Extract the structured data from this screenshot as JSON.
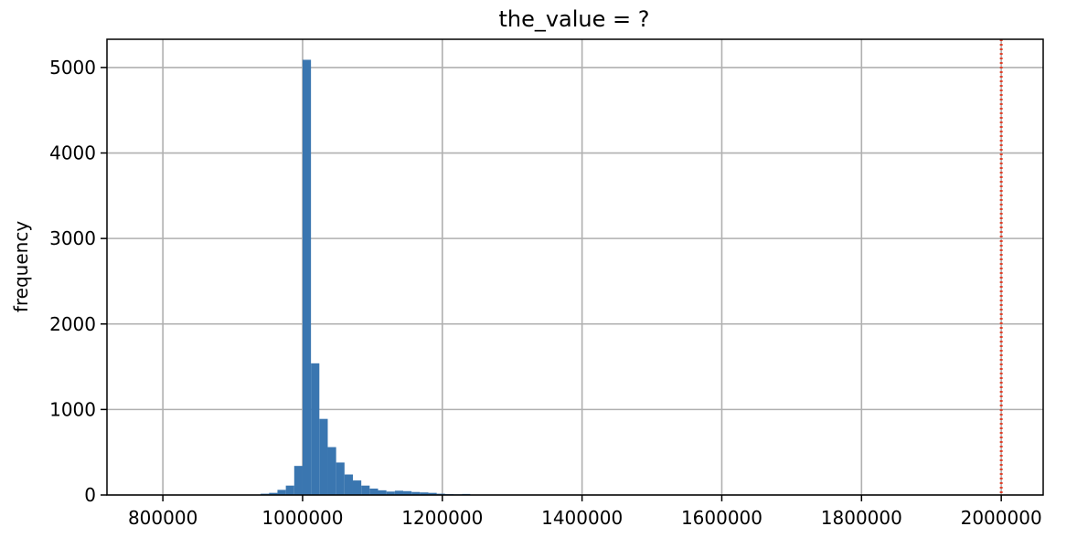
{
  "chart_data": {
    "type": "bar",
    "title": "the_value = ?",
    "xlabel": "",
    "ylabel": "frequency",
    "xlim": [
      720000,
      2060000
    ],
    "ylim": [
      0,
      5330
    ],
    "grid": true,
    "x_ticks": [
      800000,
      1000000,
      1200000,
      1400000,
      1600000,
      1800000,
      2000000
    ],
    "y_ticks": [
      0,
      1000,
      2000,
      3000,
      4000,
      5000
    ],
    "bin_width": 12000,
    "bins": [
      {
        "x0": 940000,
        "value": 15
      },
      {
        "x0": 952000,
        "value": 25
      },
      {
        "x0": 964000,
        "value": 60
      },
      {
        "x0": 976000,
        "value": 110
      },
      {
        "x0": 988000,
        "value": 340
      },
      {
        "x0": 1000000,
        "value": 5090
      },
      {
        "x0": 1012000,
        "value": 1540
      },
      {
        "x0": 1024000,
        "value": 890
      },
      {
        "x0": 1036000,
        "value": 560
      },
      {
        "x0": 1048000,
        "value": 380
      },
      {
        "x0": 1060000,
        "value": 240
      },
      {
        "x0": 1072000,
        "value": 170
      },
      {
        "x0": 1084000,
        "value": 110
      },
      {
        "x0": 1096000,
        "value": 75
      },
      {
        "x0": 1108000,
        "value": 55
      },
      {
        "x0": 1120000,
        "value": 40
      },
      {
        "x0": 1132000,
        "value": 50
      },
      {
        "x0": 1144000,
        "value": 45
      },
      {
        "x0": 1156000,
        "value": 35
      },
      {
        "x0": 1168000,
        "value": 30
      },
      {
        "x0": 1180000,
        "value": 25
      },
      {
        "x0": 1192000,
        "value": 15
      },
      {
        "x0": 1204000,
        "value": 10
      },
      {
        "x0": 1216000,
        "value": 8
      },
      {
        "x0": 1228000,
        "value": 12
      }
    ],
    "reference_line": {
      "x": 2000000,
      "color": "#e0402a",
      "style": "dotted"
    },
    "bar_color": "#3a76b0"
  }
}
